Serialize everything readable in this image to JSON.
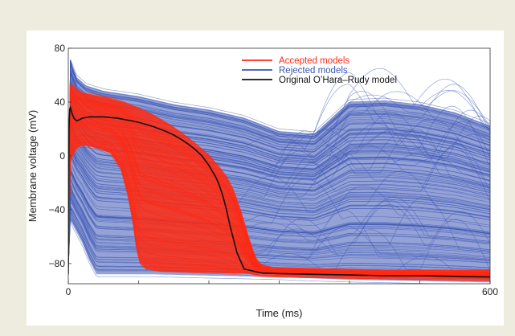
{
  "chart_data": {
    "type": "line",
    "title": "",
    "xlabel": "Time (ms)",
    "ylabel": "Membrane voltage (mV)",
    "xlim": [
      0,
      600
    ],
    "ylim": [
      -95,
      80
    ],
    "x_ticks": [
      0,
      600
    ],
    "y_ticks": [
      80,
      40,
      0,
      -40,
      -80
    ],
    "x_tick_labels": [
      "0",
      "600"
    ],
    "y_tick_labels": [
      "80",
      "40",
      "0",
      "−40",
      "−80"
    ],
    "grid": false,
    "legend_position": "top-right",
    "legend": [
      {
        "label": "Accepted models",
        "color": "#ff2a12"
      },
      {
        "label": "Rejected models",
        "color": "#3d55b5"
      },
      {
        "label": "Original O’Hara–Rudy model",
        "color": "#111111"
      }
    ],
    "series": [
      {
        "name": "Accepted models",
        "color": "#ff2a12",
        "envelope_upper": {
          "x": [
            0,
            1,
            3,
            6,
            10,
            20,
            40,
            60,
            80,
            100,
            120,
            140,
            160,
            180,
            200,
            215,
            225,
            235,
            245,
            255,
            262,
            268,
            275,
            290,
            350,
            450,
            540,
            600
          ],
          "y": [
            -85,
            30,
            55,
            53,
            50,
            47,
            45,
            43,
            40,
            36,
            31,
            25,
            18,
            10,
            1,
            -8,
            -15,
            -25,
            -40,
            -58,
            -70,
            -78,
            -82,
            -84,
            -85,
            -86,
            -86,
            -86
          ]
        },
        "envelope_lower": {
          "x": [
            0,
            1,
            3,
            6,
            10,
            20,
            40,
            60,
            75,
            85,
            92,
            97,
            102,
            110,
            130,
            200,
            300,
            400,
            500,
            600
          ],
          "y": [
            -85,
            -20,
            -5,
            0,
            5,
            8,
            6,
            2,
            -10,
            -30,
            -50,
            -70,
            -80,
            -84,
            -86,
            -87,
            -88,
            -89,
            -90,
            -91
          ]
        }
      },
      {
        "name": "Rejected models",
        "color": "#3d55b5",
        "envelope_upper": {
          "x": [
            0,
            1,
            3,
            6,
            12,
            25,
            50,
            100,
            150,
            200,
            250,
            300,
            350,
            400,
            450,
            500,
            550,
            600
          ],
          "y": [
            -85,
            40,
            72,
            66,
            58,
            52,
            48,
            44,
            38,
            34,
            28,
            18,
            16,
            40,
            41,
            38,
            32,
            22
          ]
        },
        "envelope_lower": {
          "x": [
            0,
            1,
            3,
            10,
            20,
            30,
            40,
            50,
            60,
            80,
            120,
            200,
            300,
            400,
            500,
            600
          ],
          "y": [
            -85,
            -45,
            -48,
            -55,
            -65,
            -78,
            -88,
            -88,
            -88,
            -88,
            -88,
            -89,
            -90,
            -92,
            -93,
            -94
          ]
        }
      },
      {
        "name": "Original O’Hara–Rudy model",
        "color": "#111111",
        "x": [
          0,
          1,
          2,
          3,
          5,
          8,
          12,
          20,
          30,
          40,
          50,
          60,
          70,
          80,
          90,
          100,
          110,
          120,
          130,
          140,
          150,
          160,
          170,
          180,
          190,
          200,
          210,
          215,
          220,
          225,
          230,
          240,
          250,
          275,
          300,
          350,
          400,
          450,
          500,
          550,
          600
        ],
        "y": [
          -88,
          20,
          35,
          36,
          32,
          28,
          26,
          28,
          29,
          29,
          29,
          28.5,
          28,
          27,
          26,
          25,
          23.5,
          22,
          20,
          18,
          15.5,
          12.5,
          9,
          5,
          0,
          -7,
          -16,
          -22,
          -30,
          -40,
          -52,
          -72,
          -84,
          -87,
          -87.5,
          -88,
          -88.5,
          -89,
          -89,
          -89.5,
          -90
        ]
      }
    ]
  }
}
